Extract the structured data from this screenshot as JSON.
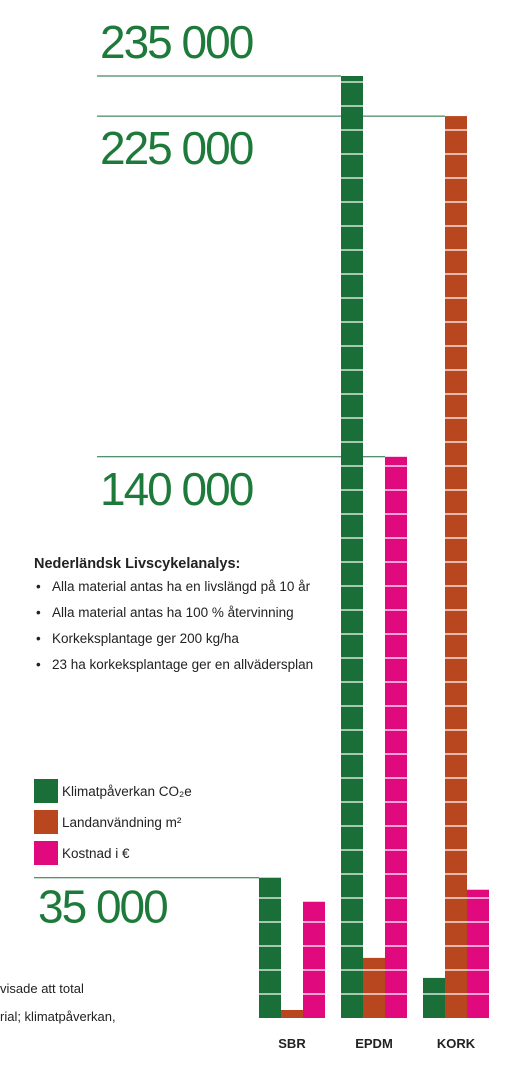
{
  "chart_data": {
    "type": "bar",
    "categories": [
      "SBR",
      "EPDM",
      "KORK"
    ],
    "series": [
      {
        "name": "Klimatpåverkan CO₂e",
        "color": "#1a6e38",
        "values": [
          35000,
          235000,
          10000
        ]
      },
      {
        "name": "Landanvändning m²",
        "color": "#b8461e",
        "values": [
          2000,
          15000,
          225000
        ]
      },
      {
        "name": "Kostnad i €",
        "color": "#e0097e",
        "values": [
          29000,
          140000,
          32000
        ]
      }
    ],
    "reference_labels": [
      "235 000",
      "225 000",
      "140 000",
      "35 000"
    ],
    "ylim": [
      0,
      235000
    ],
    "grid": false,
    "legend_position": "left"
  },
  "notes": {
    "heading": "Nederländsk Livscykelanalys:",
    "items": [
      "Alla material antas ha en livslängd på 10 år",
      "Alla material antas ha 100 % återvinning",
      "Korkeksplantage ger 200 kg/ha",
      "23 ha korkeksplantage ger en allvädersplan"
    ]
  },
  "legend": {
    "items": [
      {
        "label": "Klimatpåverkan CO₂e",
        "color": "#1a6e38"
      },
      {
        "label": "Landanvändning m²",
        "color": "#b8461e"
      },
      {
        "label": "Kostnad i €",
        "color": "#e0097e"
      }
    ]
  },
  "footer": {
    "line1": "visade att total",
    "line2": "rial; klimatpåverkan,"
  }
}
